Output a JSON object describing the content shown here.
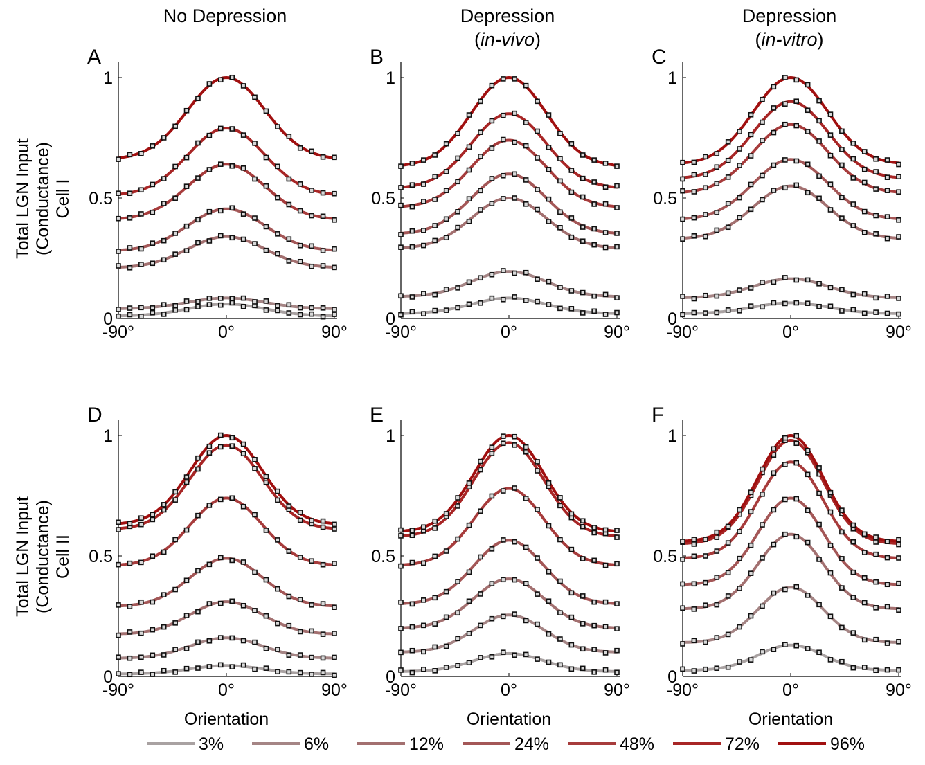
{
  "columns": [
    {
      "title": "No Depression",
      "subtitle": ""
    },
    {
      "title": "Depression",
      "subtitle": "in-vivo"
    },
    {
      "title": "Depression",
      "subtitle": "in-vitro"
    }
  ],
  "rows": [
    {
      "ylabel_lines": [
        "Total LGN Input",
        "(Conductance)",
        "Cell I"
      ]
    },
    {
      "ylabel_lines": [
        "Total LGN Input",
        "(Conductance)",
        "Cell II"
      ]
    }
  ],
  "axis": {
    "xlabel": "Orientation",
    "xtick_labels": [
      "-90°",
      "0°",
      "90°"
    ],
    "ytick_labels": [
      "0",
      "0.5",
      "1"
    ]
  },
  "legend": {
    "position": "bottom",
    "items": [
      {
        "label": "3%",
        "color": "#a9a2a2"
      },
      {
        "label": "6%",
        "color": "#a58585"
      },
      {
        "label": "12%",
        "color": "#a37070"
      },
      {
        "label": "24%",
        "color": "#a45757"
      },
      {
        "label": "48%",
        "color": "#a73c3c"
      },
      {
        "label": "72%",
        "color": "#a82626"
      },
      {
        "label": "96%",
        "color": "#a11010"
      }
    ]
  },
  "chart_data": [
    {
      "panel": "A",
      "type": "line",
      "xlim": [
        -90,
        90
      ],
      "ylim": [
        0,
        1
      ],
      "x_unit": "deg",
      "series": [
        {
          "name": "3%",
          "baseline": 0.01,
          "peak": 0.06,
          "width": 32
        },
        {
          "name": "6%",
          "baseline": 0.04,
          "peak": 0.085,
          "width": 32
        },
        {
          "name": "12%",
          "baseline": 0.21,
          "peak": 0.34,
          "width": 32
        },
        {
          "name": "24%",
          "baseline": 0.28,
          "peak": 0.455,
          "width": 32
        },
        {
          "name": "48%",
          "baseline": 0.41,
          "peak": 0.64,
          "width": 32
        },
        {
          "name": "72%",
          "baseline": 0.51,
          "peak": 0.79,
          "width": 32
        },
        {
          "name": "96%",
          "baseline": 0.66,
          "peak": 1.0,
          "width": 32
        }
      ]
    },
    {
      "panel": "B",
      "type": "line",
      "xlim": [
        -90,
        90
      ],
      "ylim": [
        0,
        1
      ],
      "x_unit": "deg",
      "series": [
        {
          "name": "3%",
          "baseline": 0.02,
          "peak": 0.085,
          "width": 31
        },
        {
          "name": "6%",
          "baseline": 0.09,
          "peak": 0.195,
          "width": 31
        },
        {
          "name": "12%",
          "baseline": 0.29,
          "peak": 0.5,
          "width": 31
        },
        {
          "name": "24%",
          "baseline": 0.35,
          "peak": 0.6,
          "width": 31
        },
        {
          "name": "48%",
          "baseline": 0.46,
          "peak": 0.74,
          "width": 31
        },
        {
          "name": "72%",
          "baseline": 0.54,
          "peak": 0.85,
          "width": 31
        },
        {
          "name": "96%",
          "baseline": 0.63,
          "peak": 1.0,
          "width": 31
        }
      ]
    },
    {
      "panel": "C",
      "type": "line",
      "xlim": [
        -90,
        90
      ],
      "ylim": [
        0,
        1
      ],
      "x_unit": "deg",
      "series": [
        {
          "name": "3%",
          "baseline": 0.02,
          "peak": 0.065,
          "width": 31
        },
        {
          "name": "6%",
          "baseline": 0.085,
          "peak": 0.165,
          "width": 31
        },
        {
          "name": "12%",
          "baseline": 0.33,
          "peak": 0.55,
          "width": 31
        },
        {
          "name": "24%",
          "baseline": 0.41,
          "peak": 0.66,
          "width": 31
        },
        {
          "name": "48%",
          "baseline": 0.52,
          "peak": 0.805,
          "width": 31
        },
        {
          "name": "72%",
          "baseline": 0.58,
          "peak": 0.9,
          "width": 31
        },
        {
          "name": "96%",
          "baseline": 0.64,
          "peak": 1.0,
          "width": 31
        }
      ]
    },
    {
      "panel": "D",
      "type": "line",
      "xlim": [
        -90,
        90
      ],
      "ylim": [
        0,
        1
      ],
      "x_unit": "deg",
      "series": [
        {
          "name": "3%",
          "baseline": 0.01,
          "peak": 0.045,
          "width": 30
        },
        {
          "name": "6%",
          "baseline": 0.075,
          "peak": 0.16,
          "width": 30
        },
        {
          "name": "12%",
          "baseline": 0.175,
          "peak": 0.31,
          "width": 30
        },
        {
          "name": "24%",
          "baseline": 0.29,
          "peak": 0.49,
          "width": 30
        },
        {
          "name": "48%",
          "baseline": 0.46,
          "peak": 0.74,
          "width": 30
        },
        {
          "name": "72%",
          "baseline": 0.61,
          "peak": 0.96,
          "width": 30
        },
        {
          "name": "96%",
          "baseline": 0.63,
          "peak": 1.0,
          "width": 30
        }
      ]
    },
    {
      "panel": "E",
      "type": "line",
      "xlim": [
        -90,
        90
      ],
      "ylim": [
        0,
        1
      ],
      "x_unit": "deg",
      "series": [
        {
          "name": "3%",
          "baseline": 0.02,
          "peak": 0.095,
          "width": 29
        },
        {
          "name": "6%",
          "baseline": 0.1,
          "peak": 0.255,
          "width": 29
        },
        {
          "name": "12%",
          "baseline": 0.2,
          "peak": 0.405,
          "width": 29
        },
        {
          "name": "24%",
          "baseline": 0.3,
          "peak": 0.565,
          "width": 29
        },
        {
          "name": "48%",
          "baseline": 0.46,
          "peak": 0.78,
          "width": 29
        },
        {
          "name": "72%",
          "baseline": 0.58,
          "peak": 0.97,
          "width": 29
        },
        {
          "name": "96%",
          "baseline": 0.6,
          "peak": 1.0,
          "width": 29
        }
      ]
    },
    {
      "panel": "F",
      "type": "line",
      "xlim": [
        -90,
        90
      ],
      "ylim": [
        0,
        1
      ],
      "x_unit": "deg",
      "series": [
        {
          "name": "3%",
          "baseline": 0.025,
          "peak": 0.13,
          "width": 27
        },
        {
          "name": "6%",
          "baseline": 0.14,
          "peak": 0.37,
          "width": 27
        },
        {
          "name": "12%",
          "baseline": 0.28,
          "peak": 0.59,
          "width": 27
        },
        {
          "name": "24%",
          "baseline": 0.38,
          "peak": 0.74,
          "width": 27
        },
        {
          "name": "48%",
          "baseline": 0.49,
          "peak": 0.89,
          "width": 27
        },
        {
          "name": "72%",
          "baseline": 0.55,
          "peak": 0.98,
          "width": 27
        },
        {
          "name": "96%",
          "baseline": 0.56,
          "peak": 1.0,
          "width": 27
        }
      ]
    }
  ]
}
